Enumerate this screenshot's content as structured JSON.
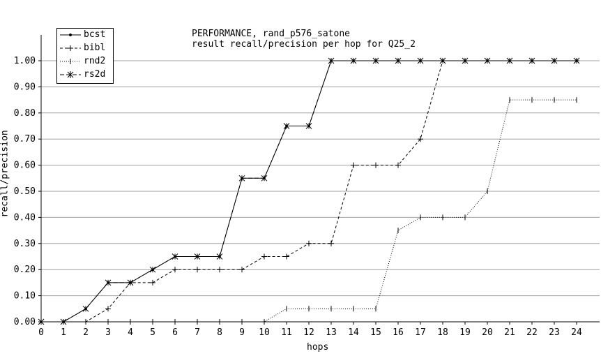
{
  "chart_data": {
    "type": "line",
    "title": [
      "PERFORMANCE, rand_p576_satone",
      "result recall/precision per hop for Q25_2"
    ],
    "xlabel": "hops",
    "ylabel": "recall/precision",
    "x": [
      0,
      1,
      2,
      3,
      4,
      5,
      6,
      7,
      8,
      9,
      10,
      11,
      12,
      13,
      14,
      15,
      16,
      17,
      18,
      19,
      20,
      21,
      22,
      23,
      24
    ],
    "xlim": [
      0,
      25
    ],
    "ylim": [
      0,
      1.05
    ],
    "x_ticks": [
      "0",
      "1",
      "2",
      "3",
      "4",
      "5",
      "6",
      "7",
      "8",
      "9",
      "10",
      "11",
      "12",
      "13",
      "14",
      "15",
      "16",
      "17",
      "18",
      "19",
      "20",
      "21",
      "22",
      "23",
      "24"
    ],
    "y_ticks": [
      "0.00",
      "0.10",
      "0.20",
      "0.30",
      "0.40",
      "0.50",
      "0.60",
      "0.70",
      "0.80",
      "0.90",
      "1.00"
    ],
    "grid": "horizontal",
    "legend_position": "top-left",
    "series": [
      {
        "name": "bcst",
        "values": [
          0,
          0,
          0.05,
          0.15,
          0.15,
          0.2,
          0.25,
          0.25,
          0.25,
          0.55,
          0.55,
          0.75,
          0.75,
          1,
          1,
          1,
          1,
          1,
          1,
          1,
          1,
          1,
          1,
          1,
          1
        ]
      },
      {
        "name": "bibl",
        "values": [
          0,
          0,
          0,
          0.05,
          0.15,
          0.15,
          0.2,
          0.2,
          0.2,
          0.2,
          0.25,
          0.25,
          0.3,
          0.3,
          0.6,
          0.6,
          0.6,
          0.7,
          1,
          1,
          1,
          1,
          1,
          1,
          1
        ]
      },
      {
        "name": "rnd2",
        "values": [
          0,
          0,
          0,
          0,
          0,
          0,
          0,
          0,
          0,
          0,
          0,
          0.05,
          0.05,
          0.05,
          0.05,
          0.05,
          0.35,
          0.4,
          0.4,
          0.4,
          0.5,
          0.85,
          0.85,
          0.85,
          0.85
        ]
      },
      {
        "name": "rs2d",
        "values": [
          0,
          0,
          0.05,
          0.15,
          0.15,
          0.2,
          0.25,
          0.25,
          0.25,
          0.55,
          0.55,
          0.75,
          0.75,
          1,
          1,
          1,
          1,
          1,
          1,
          1,
          1,
          1,
          1,
          1,
          1
        ]
      }
    ],
    "styles": {
      "line_color": "#000000",
      "grid_color": "#a0a0a0"
    }
  }
}
